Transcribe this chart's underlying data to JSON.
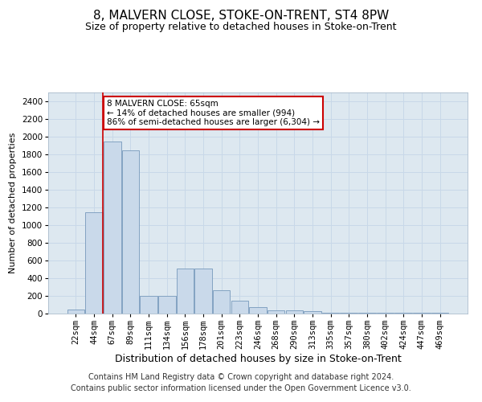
{
  "title": "8, MALVERN CLOSE, STOKE-ON-TRENT, ST4 8PW",
  "subtitle": "Size of property relative to detached houses in Stoke-on-Trent",
  "xlabel": "Distribution of detached houses by size in Stoke-on-Trent",
  "ylabel": "Number of detached properties",
  "categories": [
    "22sqm",
    "44sqm",
    "67sqm",
    "89sqm",
    "111sqm",
    "134sqm",
    "156sqm",
    "178sqm",
    "201sqm",
    "223sqm",
    "246sqm",
    "268sqm",
    "290sqm",
    "313sqm",
    "335sqm",
    "357sqm",
    "380sqm",
    "402sqm",
    "424sqm",
    "447sqm",
    "469sqm"
  ],
  "values": [
    50,
    1150,
    1950,
    1850,
    200,
    200,
    510,
    510,
    260,
    150,
    70,
    40,
    35,
    30,
    10,
    10,
    10,
    10,
    5,
    5,
    5
  ],
  "bar_color": "#c9d9ea",
  "bar_edge_color": "#7799bb",
  "annotation_text": "8 MALVERN CLOSE: 65sqm\n← 14% of detached houses are smaller (994)\n86% of semi-detached houses are larger (6,304) →",
  "annotation_box_color": "#ffffff",
  "annotation_box_edge": "#cc0000",
  "subject_line_color": "#cc0000",
  "ylim": [
    0,
    2500
  ],
  "yticks": [
    0,
    200,
    400,
    600,
    800,
    1000,
    1200,
    1400,
    1600,
    1800,
    2000,
    2200,
    2400
  ],
  "grid_color": "#c8d8e8",
  "background_color": "#dde8f0",
  "footer1": "Contains HM Land Registry data © Crown copyright and database right 2024.",
  "footer2": "Contains public sector information licensed under the Open Government Licence v3.0.",
  "title_fontsize": 11,
  "subtitle_fontsize": 9,
  "xlabel_fontsize": 9,
  "ylabel_fontsize": 8,
  "tick_fontsize": 7.5,
  "footer_fontsize": 7
}
